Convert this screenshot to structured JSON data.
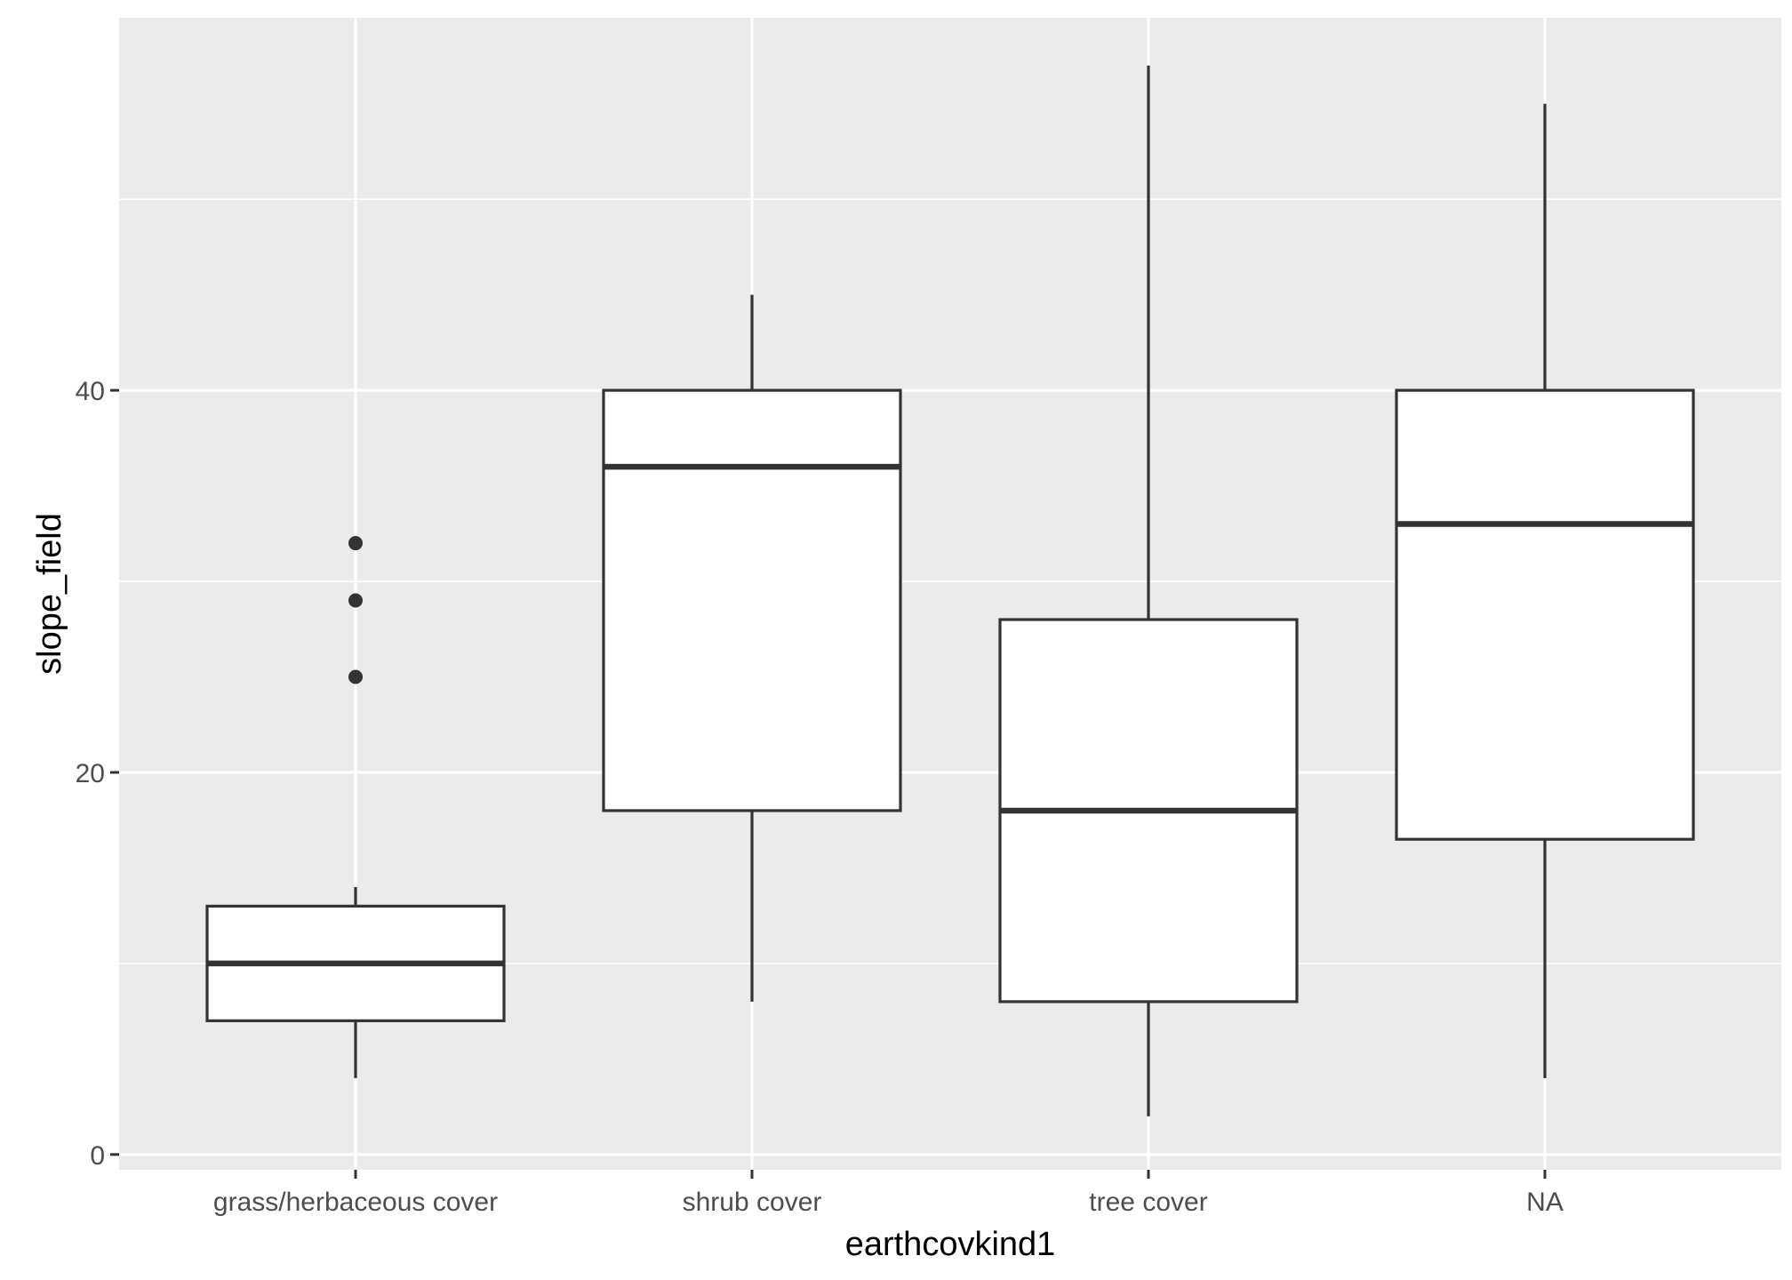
{
  "chart_data": {
    "type": "boxplot",
    "title": "",
    "xlabel": "earthcovkind1",
    "ylabel": "slope_field",
    "categories": [
      "grass/herbaceous cover",
      "shrub cover",
      "tree cover",
      "NA"
    ],
    "ylim": [
      -0.8,
      59.5
    ],
    "y_ticks": [
      0,
      20,
      40
    ],
    "y_minor_ticks": [
      10,
      30,
      50
    ],
    "grid": true,
    "legend": "none",
    "boxes": [
      {
        "category": "grass/herbaceous cover",
        "whisker_low": 4,
        "q1": 7,
        "median": 10,
        "q3": 13,
        "whisker_high": 14,
        "outliers": [
          25,
          29,
          32
        ]
      },
      {
        "category": "shrub cover",
        "whisker_low": 8,
        "q1": 18,
        "median": 36,
        "q3": 40,
        "whisker_high": 45,
        "outliers": []
      },
      {
        "category": "tree cover",
        "whisker_low": 2,
        "q1": 8,
        "median": 18,
        "q3": 28,
        "whisker_high": 57,
        "outliers": []
      },
      {
        "category": "NA",
        "whisker_low": 4,
        "q1": 16.5,
        "median": 33,
        "q3": 40,
        "whisker_high": 55,
        "outliers": []
      }
    ],
    "colors": {
      "panel_background": "#EBEBEB",
      "grid": "#FFFFFF",
      "box_fill": "#FFFFFF",
      "box_line": "#333333",
      "tick_label": "#4D4D4D",
      "axis_title": "#000000"
    }
  }
}
